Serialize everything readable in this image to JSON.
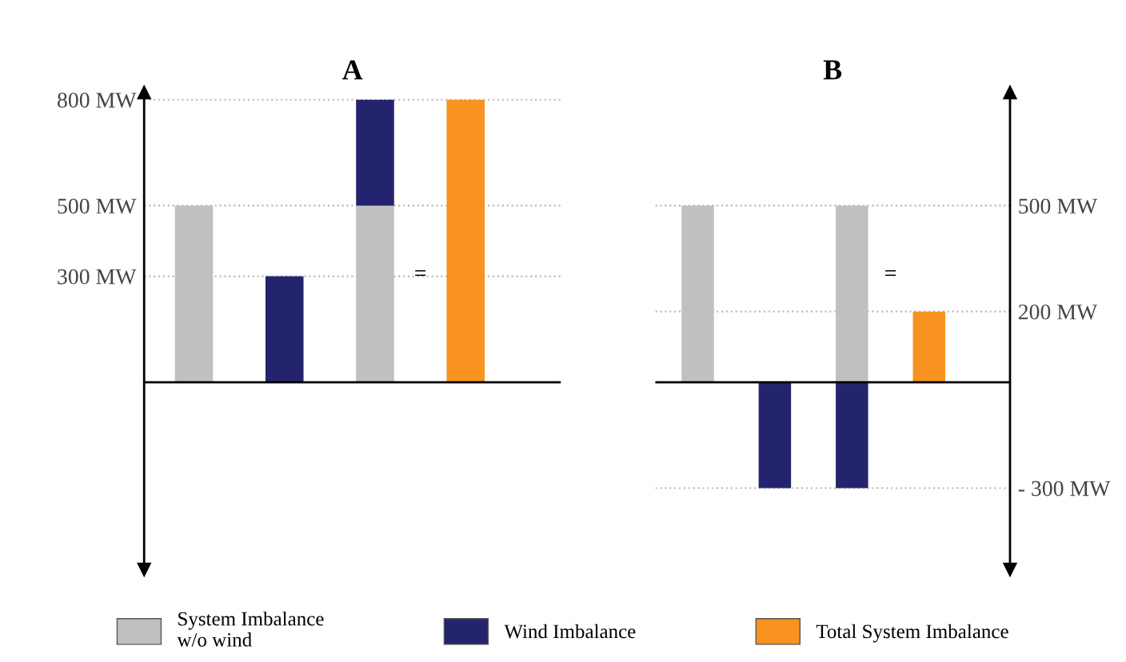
{
  "chart_data": [
    {
      "type": "bar",
      "title": "A",
      "categories": [
        null,
        null,
        null,
        null
      ],
      "stacked": true,
      "grid": "y",
      "legend": "bottom",
      "tick_labels": "y",
      "annotations": [
        "="
      ],
      "series": [
        {
          "name": "System Imbalance\nw/o wind",
          "color": "#c0c0c0",
          "values": [
            500,
            null,
            500,
            null
          ]
        },
        {
          "name": "Wind Imbalance",
          "color": "#24246e",
          "values": [
            null,
            300,
            300,
            null
          ]
        },
        {
          "name": "Total System Imbalance",
          "color": "#f7931e",
          "values": [
            null,
            null,
            null,
            800
          ]
        }
      ],
      "ylim": [
        -530,
        820
      ],
      "yticks": [
        {
          "value": 300,
          "label": "300 MW"
        },
        {
          "value": 500,
          "label": "500 MW"
        },
        {
          "value": 800,
          "label": "800 MW"
        }
      ]
    },
    {
      "type": "bar",
      "title": "B",
      "categories": [
        null,
        null,
        null,
        null
      ],
      "stacked": true,
      "grid": "y",
      "tick_labels": "y",
      "annotations": [
        "="
      ],
      "series": [
        {
          "color": "#c0c0c0",
          "values": [
            500,
            null,
            500,
            null
          ],
          "axis": "y2"
        },
        {
          "color": "#24246e",
          "values": [
            null,
            -300,
            -300,
            null
          ],
          "axis": "y2"
        },
        {
          "color": "#f7931e",
          "values": [
            null,
            null,
            null,
            200
          ],
          "axis": "y2"
        }
      ],
      "y2lim": [
        -530,
        820
      ],
      "y2ticks": [
        {
          "value": -300,
          "label": "- 300 MW"
        },
        {
          "value": 200,
          "label": "200 MW"
        },
        {
          "value": 500,
          "label": "500 MW"
        }
      ]
    }
  ]
}
